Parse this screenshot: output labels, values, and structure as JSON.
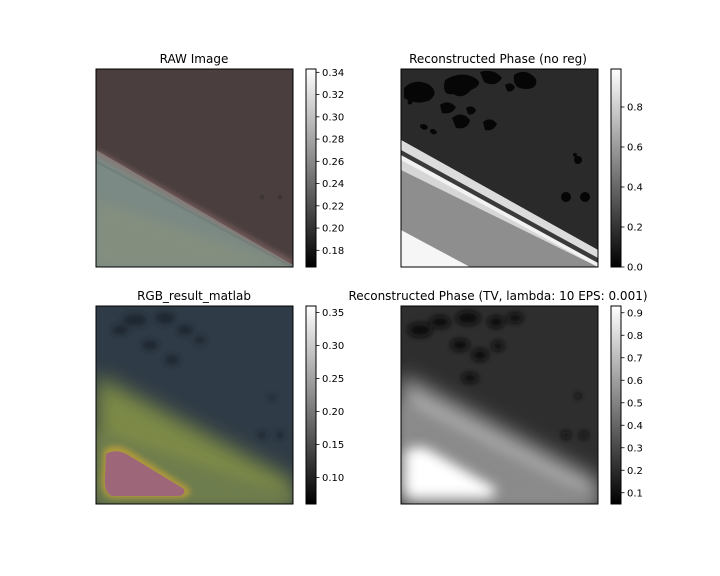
{
  "chart_data": [
    {
      "type": "image",
      "title": "RAW Image",
      "colormap": "gray",
      "colorbar_ticks": [
        "0.34",
        "0.32",
        "0.30",
        "0.28",
        "0.26",
        "0.24",
        "0.22",
        "0.20",
        "0.18"
      ],
      "colorbar_range": [
        0.165,
        0.343
      ]
    },
    {
      "type": "image",
      "title": "Reconstructed Phase (no reg)",
      "colormap": "gray",
      "colorbar_ticks": [
        "0.8",
        "0.6",
        "0.4",
        "0.2",
        "0.0"
      ],
      "colorbar_range": [
        0.0,
        0.99
      ]
    },
    {
      "type": "image",
      "title": "RGB_result_matlab",
      "colormap": "gray",
      "colorbar_ticks": [
        "0.35",
        "0.30",
        "0.25",
        "0.20",
        "0.15",
        "0.10"
      ],
      "colorbar_range": [
        0.06,
        0.36
      ]
    },
    {
      "type": "image",
      "title": "Reconstructed Phase (TV, lambda: 10 EPS: 0.001)",
      "colormap": "gray",
      "colorbar_ticks": [
        "0.9",
        "0.8",
        "0.7",
        "0.6",
        "0.5",
        "0.4",
        "0.3",
        "0.2",
        "0.1"
      ],
      "colorbar_range": [
        0.05,
        0.93
      ]
    }
  ],
  "colors": {
    "raw_background": "#4a3f3e",
    "raw_lower_region": "#7b8a84",
    "raw_edge_band": "#8e6a6a",
    "phase_dark": "#2a2a2a",
    "phase_bright": "#f2f2f2",
    "rgb_background": "#2f3b46",
    "rgb_yellow_region": "#7d8a46",
    "rgb_pink_blob": "#9e6679"
  }
}
